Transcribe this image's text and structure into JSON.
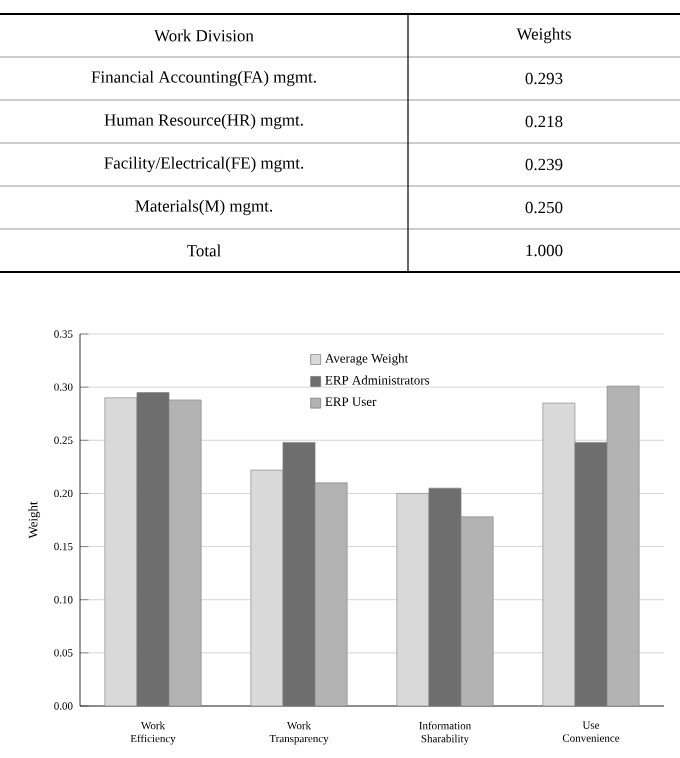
{
  "chart_data": [
    {
      "type": "other",
      "annotations": [
        "Work Division",
        "Weights",
        "Financial Accounting(FA) mgmt.",
        "0.293",
        "Human Resource(HR) mgmt.",
        "0.218",
        "Facility/Electrical(FE) mgmt.",
        "0.239",
        "Materials(M) mgmt.",
        "0.250",
        "Total",
        "1.000"
      ]
    },
    {
      "type": "bar",
      "ylabel": "Weight",
      "categories": [
        "Work Efficiency",
        "Work Transparency",
        "Information Sharability",
        "Use Convenience"
      ],
      "series": [
        {
          "name": "Average Weight",
          "color": "#d9d9d9",
          "values": [
            0.29,
            0.222,
            0.2,
            0.285
          ]
        },
        {
          "name": "ERP Administrators",
          "color": "#6e6e6e",
          "values": [
            0.295,
            0.248,
            0.205,
            0.248
          ]
        },
        {
          "name": "ERP User",
          "color": "#b3b3b3",
          "values": [
            0.288,
            0.21,
            0.178,
            0.301
          ]
        }
      ],
      "ylim": [
        0,
        0.35
      ],
      "yticks": [
        {
          "value": 0,
          "label": "0.00"
        },
        {
          "value": 0.05,
          "label": "0.05"
        },
        {
          "value": 0.1,
          "label": "0.10"
        },
        {
          "value": 0.15,
          "label": "0.15"
        },
        {
          "value": 0.2,
          "label": "0.20"
        },
        {
          "value": 0.25,
          "label": "0.25"
        },
        {
          "value": 0.3,
          "label": "0.30"
        },
        {
          "value": 0.35,
          "label": "0.35"
        }
      ],
      "grid": "y",
      "legend": "top"
    }
  ]
}
